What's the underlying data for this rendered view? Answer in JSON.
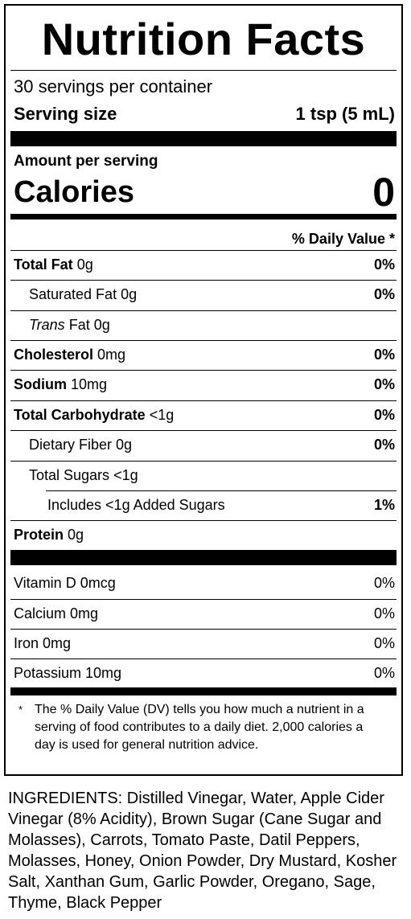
{
  "title": "Nutrition Facts",
  "servings_per_container": "30 servings per container",
  "serving_size": {
    "label": "Serving size",
    "value": "1 tsp (5 mL)"
  },
  "amount_per_serving": "Amount per serving",
  "calories": {
    "label": "Calories",
    "value": "0"
  },
  "daily_value_header": "% Daily Value *",
  "nutrients": [
    {
      "name": "Total Fat",
      "amount": "0g",
      "dv": "0%"
    },
    {
      "name": "Saturated Fat",
      "amount": "0g",
      "dv": "0%"
    },
    {
      "name": "Trans",
      "amount": "Fat 0g",
      "dv": ""
    },
    {
      "name": "Cholesterol",
      "amount": "0mg",
      "dv": "0%"
    },
    {
      "name": "Sodium",
      "amount": "10mg",
      "dv": "0%"
    },
    {
      "name": "Total Carbohydrate",
      "amount": "<1g",
      "dv": "0%"
    },
    {
      "name": "Dietary Fiber",
      "amount": "0g",
      "dv": "0%"
    },
    {
      "name": "Total Sugars",
      "amount": "<1g",
      "dv": ""
    },
    {
      "name": "Includes <1g Added Sugars",
      "amount": "",
      "dv": "1%"
    },
    {
      "name": "Protein",
      "amount": "0g",
      "dv": ""
    }
  ],
  "vitamins": [
    {
      "name": "Vitamin D 0mcg",
      "dv": "0%"
    },
    {
      "name": "Calcium 0mg",
      "dv": "0%"
    },
    {
      "name": "Iron 0mg",
      "dv": "0%"
    },
    {
      "name": "Potassium 10mg",
      "dv": "0%"
    }
  ],
  "footnote": {
    "star": "*",
    "text": "The % Daily Value (DV) tells you how much a nutrient in a serving of food contributes to a daily diet. 2,000 calories a day is used for general nutrition advice."
  },
  "ingredients": "INGREDIENTS: Distilled Vinegar, Water, Apple Cider Vinegar (8% Acidity), Brown Sugar (Cane Sugar and Molasses), Carrots, Tomato Paste, Datil Peppers, Molasses, Honey, Onion Powder, Dry Mustard, Kosher Salt, Xanthan Gum, Garlic Powder, Oregano, Sage, Thyme, Black Pepper"
}
